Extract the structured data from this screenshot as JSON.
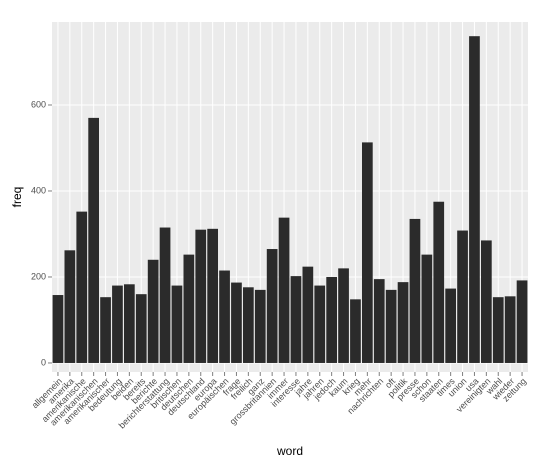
{
  "chart_data": {
    "type": "bar",
    "x_label": "word",
    "y_label": "freq",
    "categories": [
      "allgemein",
      "amerika",
      "amerikanische",
      "amerikanischen",
      "amerikanischer",
      "bedeutung",
      "beiden",
      "bereits",
      "berichte",
      "berichterstattung",
      "britischen",
      "deutschen",
      "deutschland",
      "europa",
      "europäischen",
      "frage",
      "freilich",
      "ganz",
      "grossbritannien",
      "immer",
      "interesse",
      "jahre",
      "jahren",
      "jedoch",
      "kaum",
      "krieg",
      "mehr",
      "nachrichten",
      "oft",
      "politik",
      "presse",
      "schon",
      "staaten",
      "times",
      "union",
      "usa",
      "vereinigten",
      "wahl",
      "wieder",
      "zeitung"
    ],
    "values": [
      158,
      262,
      352,
      570,
      153,
      180,
      183,
      160,
      240,
      315,
      180,
      252,
      310,
      312,
      215,
      187,
      176,
      170,
      265,
      338,
      202,
      224,
      180,
      200,
      220,
      148,
      513,
      195,
      170,
      188,
      335,
      252,
      375,
      173,
      308,
      760,
      285,
      153,
      155,
      192
    ],
    "color": "#2b2b2b",
    "ylim": [
      -21,
      793
    ],
    "yticks": [
      0,
      200,
      400,
      600
    ],
    "grid": true
  }
}
